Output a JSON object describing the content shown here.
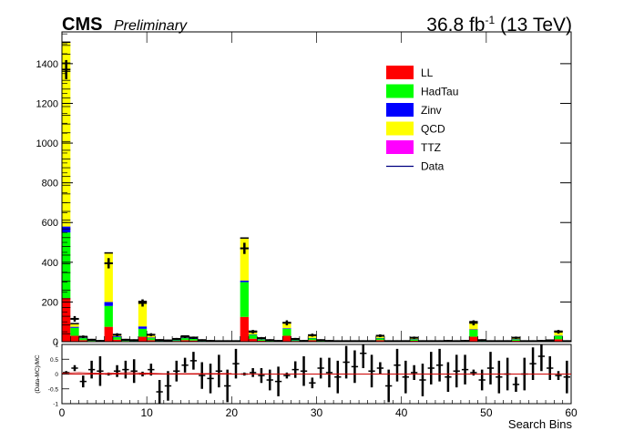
{
  "header": {
    "experiment": "CMS",
    "status": "Preliminary",
    "lumi_value": "36.8 fb",
    "lumi_exp": "-1",
    "energy": " (13 TeV)"
  },
  "chart_data": [
    {
      "type": "bar",
      "stacked": true,
      "xlabel": "Search Bins",
      "ylabel": "",
      "xlim": [
        0,
        60
      ],
      "ylim": [
        0,
        1560
      ],
      "x_ticks": [
        0,
        10,
        20,
        30,
        40,
        50,
        60
      ],
      "y_ticks": [
        0,
        200,
        400,
        600,
        800,
        1000,
        1200,
        1400
      ],
      "legend_position": "top-right",
      "colors": {
        "LL": "#ff0000",
        "HadTau": "#00ff00",
        "Zinv": "#0000ff",
        "QCD": "#ffff00",
        "TTZ": "#ff00ff",
        "Data": "#000080"
      },
      "bins_x": [
        0.5,
        1.5,
        2.5,
        3.5,
        4.5,
        5.5,
        6.5,
        7.5,
        8.5,
        9.5,
        10.5,
        11.5,
        12.5,
        13.5,
        14.5,
        15.5,
        16.5,
        17.5,
        18.5,
        19.5,
        20.5,
        21.5,
        22.5,
        23.5,
        24.5,
        25.5,
        26.5,
        27.5,
        28.5,
        29.5,
        30.5,
        31.5,
        32.5,
        33.5,
        34.5,
        35.5,
        36.5,
        37.5,
        38.5,
        39.5,
        40.5,
        41.5,
        42.5,
        43.5,
        44.5,
        45.5,
        46.5,
        47.5,
        48.5,
        49.5,
        50.5,
        51.5,
        52.5,
        53.5,
        54.5,
        55.5,
        56.5,
        57.5,
        58.5,
        59.5
      ],
      "series": [
        {
          "name": "LL",
          "values": [
            220,
            30,
            8,
            3,
            1,
            75,
            10,
            3,
            2,
            25,
            8,
            2,
            2,
            4,
            8,
            6,
            2,
            1,
            1,
            1,
            1,
            125,
            15,
            5,
            2,
            1,
            30,
            4,
            1,
            8,
            2,
            1,
            1,
            1,
            1,
            1,
            1,
            8,
            1,
            1,
            1,
            5,
            1,
            1,
            1,
            1,
            1,
            1,
            25,
            2,
            1,
            1,
            1,
            5,
            1,
            1,
            1,
            2,
            12,
            1
          ]
        },
        {
          "name": "HadTau",
          "values": [
            330,
            40,
            10,
            4,
            2,
            105,
            14,
            4,
            3,
            40,
            10,
            3,
            2,
            5,
            10,
            8,
            3,
            2,
            1,
            1,
            1,
            175,
            20,
            7,
            3,
            2,
            35,
            5,
            2,
            10,
            3,
            2,
            1,
            1,
            1,
            1,
            1,
            10,
            1,
            1,
            1,
            7,
            1,
            1,
            1,
            2,
            1,
            2,
            35,
            3,
            1,
            1,
            1,
            7,
            1,
            1,
            2,
            3,
            18,
            1
          ]
        },
        {
          "name": "Zinv",
          "values": [
            30,
            5,
            2,
            1,
            0,
            20,
            4,
            1,
            1,
            12,
            3,
            1,
            1,
            1,
            2,
            2,
            1,
            0,
            0,
            0,
            0,
            8,
            2,
            1,
            0,
            0,
            3,
            1,
            0,
            1,
            0,
            0,
            0,
            0,
            0,
            0,
            0,
            1,
            0,
            0,
            0,
            1,
            0,
            0,
            0,
            0,
            0,
            0,
            2,
            1,
            0,
            0,
            0,
            1,
            0,
            0,
            0,
            0,
            1,
            0
          ]
        },
        {
          "name": "QCD",
          "values": [
            925,
            15,
            5,
            2,
            1,
            245,
            7,
            2,
            2,
            125,
            14,
            3,
            2,
            4,
            9,
            6,
            2,
            1,
            1,
            1,
            1,
            212,
            15,
            5,
            3,
            1,
            27,
            4,
            1,
            14,
            3,
            1,
            1,
            1,
            1,
            1,
            1,
            11,
            1,
            1,
            1,
            7,
            1,
            1,
            1,
            1,
            1,
            1,
            38,
            2,
            1,
            1,
            1,
            7,
            1,
            1,
            1,
            2,
            21,
            1
          ]
        },
        {
          "name": "TTZ",
          "values": [
            3,
            1,
            0,
            0,
            0,
            2,
            1,
            0,
            0,
            1,
            0,
            0,
            0,
            0,
            0,
            0,
            0,
            0,
            0,
            0,
            0,
            2,
            1,
            0,
            0,
            0,
            1,
            0,
            0,
            0,
            0,
            0,
            0,
            0,
            0,
            0,
            0,
            0,
            0,
            0,
            0,
            0,
            0,
            0,
            0,
            0,
            0,
            0,
            1,
            0,
            0,
            0,
            0,
            0,
            0,
            0,
            0,
            0,
            1,
            0
          ]
        }
      ],
      "data_values": [
        1370,
        115,
        25,
        10,
        4,
        395,
        35,
        10,
        8,
        195,
        35,
        8,
        6,
        14,
        25,
        20,
        8,
        4,
        3,
        3,
        3,
        470,
        50,
        18,
        8,
        4,
        95,
        14,
        4,
        33,
        8,
        4,
        3,
        3,
        3,
        3,
        3,
        30,
        3,
        3,
        3,
        20,
        3,
        3,
        3,
        4,
        3,
        4,
        95,
        8,
        3,
        3,
        3,
        20,
        3,
        3,
        4,
        7,
        50,
        3
      ]
    },
    {
      "type": "scatter",
      "ylabel": "(Data-MC)/MC",
      "xlim": [
        0,
        60
      ],
      "ylim": [
        -1,
        1
      ],
      "x_ticks": [
        0,
        10,
        20,
        30,
        40,
        50,
        60
      ],
      "y_ticks": [
        -1,
        -0.5,
        0,
        0.5,
        1
      ],
      "y_tick_labels": [
        "-1",
        "-0.5",
        "0",
        "0.5",
        "1"
      ],
      "reference_line": 0,
      "ratio": [
        0.05,
        0.2,
        -0.25,
        0.15,
        0.1,
        0,
        0.1,
        0.15,
        0.1,
        0,
        0.15,
        -0.6,
        -0.4,
        0.1,
        0.3,
        0.45,
        -0.05,
        -0.15,
        0.1,
        -0.4,
        0.35,
        0,
        0.05,
        -0.05,
        -0.2,
        -0.25,
        -0.05,
        0.15,
        0.1,
        -0.3,
        0.2,
        0.05,
        -0.1,
        0.4,
        0.25,
        0.7,
        0.1,
        0.2,
        -0.4,
        0.3,
        -0.1,
        0.05,
        -0.2,
        0.2,
        0.3,
        -0.1,
        0.1,
        0.15,
        0.05,
        -0.2,
        0.2,
        -0.1,
        0,
        -0.35,
        0,
        0.35,
        0.6,
        0.2,
        -0.05,
        -0.1
      ],
      "ratio_err": [
        0.05,
        0.1,
        0.2,
        0.3,
        0.5,
        0.05,
        0.2,
        0.3,
        0.4,
        0.08,
        0.2,
        0.4,
        0.5,
        0.35,
        0.25,
        0.3,
        0.45,
        0.5,
        0.55,
        0.55,
        0.5,
        0.05,
        0.15,
        0.25,
        0.35,
        0.5,
        0.1,
        0.28,
        0.5,
        0.18,
        0.35,
        0.5,
        0.55,
        0.55,
        0.55,
        0.5,
        0.55,
        0.2,
        0.55,
        0.55,
        0.55,
        0.25,
        0.55,
        0.55,
        0.55,
        0.5,
        0.55,
        0.5,
        0.1,
        0.35,
        0.55,
        0.55,
        0.55,
        0.25,
        0.55,
        0.55,
        0.5,
        0.4,
        0.15,
        0.55
      ]
    }
  ]
}
